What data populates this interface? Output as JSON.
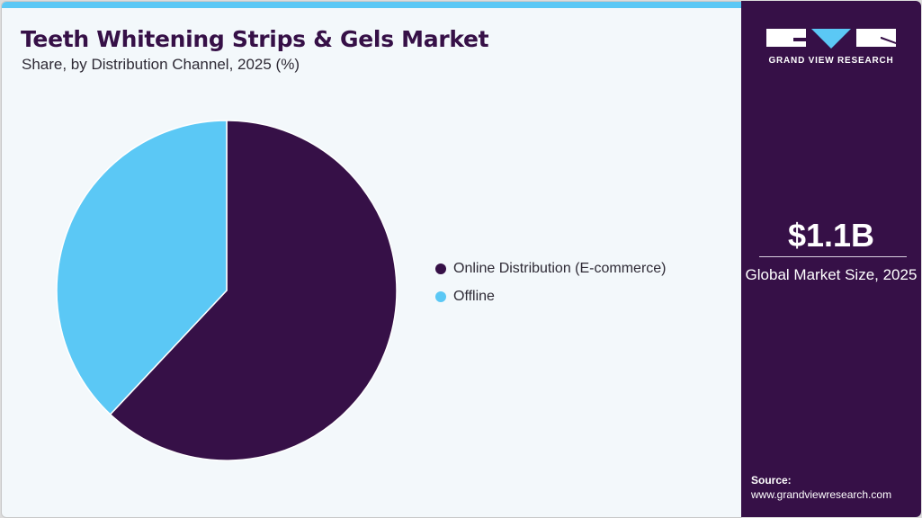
{
  "header": {
    "title": "Teeth Whitening Strips & Gels Market",
    "subtitle": "Share, by Distribution Channel, 2025 (%)"
  },
  "chart_data": {
    "type": "pie",
    "title": "Teeth Whitening Strips & Gels Market",
    "subtitle": "Share, by Distribution Channel, 2025 (%)",
    "categories": [
      "Online Distribution (E-commerce)",
      "Offline"
    ],
    "values": [
      62,
      38
    ],
    "colors": [
      "#361047",
      "#5bc8f5"
    ],
    "start_angle_deg": 0,
    "direction": "clockwise",
    "legend_position": "right"
  },
  "sidebar": {
    "logo_text": "GRAND VIEW RESEARCH",
    "market_size": "$1.1B",
    "market_label": "Global Market Size, 2025",
    "source_label": "Source:",
    "source_url": "www.grandviewresearch.com",
    "background": "#361047",
    "accent": "#5bc8f5"
  }
}
